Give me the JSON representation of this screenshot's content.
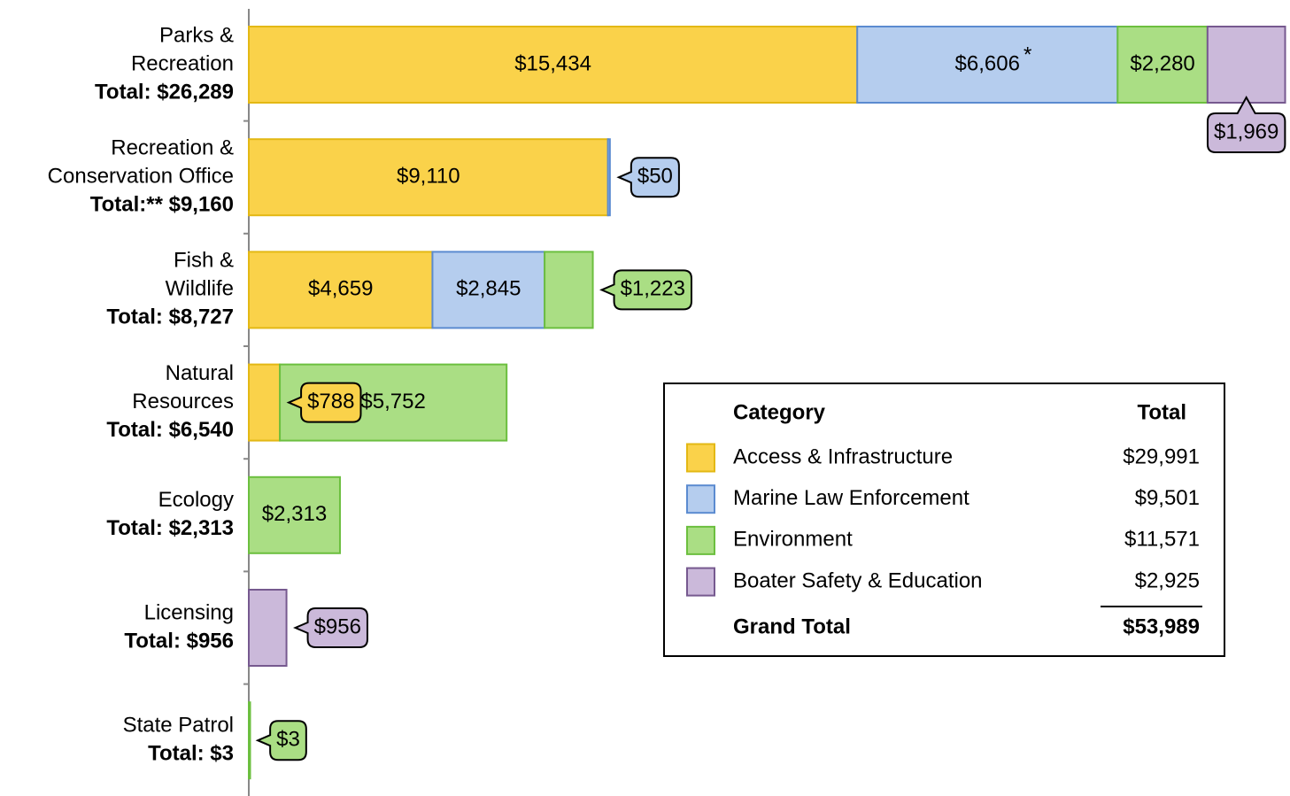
{
  "chart_data": {
    "type": "stacked-barh",
    "categories": [
      [
        "Parks &",
        "Recreation"
      ],
      [
        "Recreation &",
        "Conservation Office"
      ],
      [
        "Fish &",
        "Wildlife"
      ],
      [
        "Natural",
        "Resources"
      ],
      [
        "Ecology"
      ],
      [
        "Licensing"
      ],
      [
        "State Patrol"
      ]
    ],
    "totals": [
      26289,
      9160,
      8727,
      6540,
      2313,
      956,
      3
    ],
    "total_labels": [
      "Total: $26,289",
      "Total:** $9,160",
      "Total: $8,727",
      "Total: $6,540",
      "Total: $2,313",
      "Total: $956",
      "Total: $3"
    ],
    "series": [
      {
        "name": "Access & Infrastructure",
        "color": "#fad24a",
        "edge_color": "#e3b814",
        "values": [
          15434,
          9110,
          4659,
          788,
          null,
          null,
          null
        ],
        "value_labels": [
          "$15,434",
          "$9,110",
          "$4,659",
          "$788",
          null,
          null,
          null
        ],
        "total": 29991,
        "total_label": "$29,991"
      },
      {
        "name": "Marine Law Enforcement",
        "color": "#b5cdee",
        "edge_color": "#5b8bd0",
        "values": [
          6606,
          50,
          2845,
          null,
          null,
          null,
          null
        ],
        "value_labels": [
          "$6,606",
          "$50",
          "$2,845",
          null,
          null,
          null,
          null
        ],
        "total": 9501,
        "total_label": "$9,501"
      },
      {
        "name": "Environment",
        "color": "#aade84",
        "edge_color": "#6cbf3f",
        "values": [
          2280,
          null,
          1223,
          5752,
          2313,
          null,
          3
        ],
        "value_labels": [
          "$2,280",
          null,
          "$1,223",
          "$5,752",
          "$2,313",
          null,
          "$3"
        ],
        "total": 11571,
        "total_label": "$11,571"
      },
      {
        "name": "Boater Safety & Education",
        "color": "#cbb9da",
        "edge_color": "#76598f",
        "values": [
          1969,
          null,
          null,
          null,
          null,
          956,
          null
        ],
        "value_labels": [
          "$1,969",
          null,
          null,
          null,
          null,
          "$956",
          null
        ],
        "total": 2925,
        "total_label": "$2,925"
      }
    ],
    "annotation": "*",
    "legend_header": "Category",
    "legend_total_header": "Total",
    "grand_total_label": "Grand Total",
    "grand_total": 53989,
    "grand_total_value_label": "$53,989",
    "xlim": [
      0,
      26300
    ]
  }
}
